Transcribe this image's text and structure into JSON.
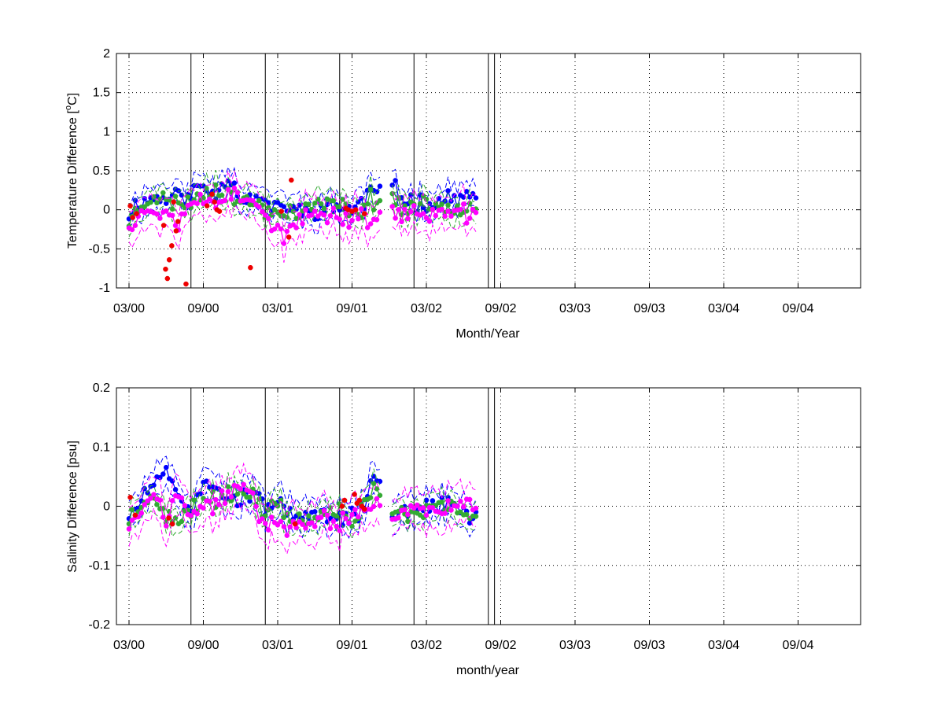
{
  "figure": {
    "background": "#ffffff",
    "series_colors": {
      "blue": "#0000ff",
      "green": "#33aa33",
      "magenta": "#ff00ff",
      "red": "#ee0000"
    }
  },
  "chart_data": [
    {
      "type": "line",
      "title": "",
      "xlabel": "Month/Year",
      "ylabel_main": "Temperature Difference [",
      "ylabel_sup": "o",
      "ylabel_end": "C]",
      "x_tick_labels": [
        "03/00",
        "09/00",
        "03/01",
        "09/01",
        "03/02",
        "09/02",
        "03/03",
        "09/03",
        "03/04",
        "09/04"
      ],
      "y_tick_labels": [
        "2",
        "1.5",
        "1",
        "0.5",
        "0",
        "-0.5",
        "-1"
      ],
      "y_ticks": [
        2,
        1.5,
        1,
        0.5,
        0,
        -0.5,
        -1
      ],
      "ylim": [
        -1,
        2
      ],
      "grid": true,
      "vertical_lines_months": [
        5,
        11,
        17,
        23,
        29,
        29.5
      ],
      "series": [
        {
          "color": "blue",
          "marker": true,
          "envelope": 0.15,
          "seed": 11,
          "gap": [
            20.3,
            21.2
          ],
          "anchors": [
            [
              0,
              -0.05
            ],
            [
              0.5,
              0.05
            ],
            [
              1,
              0.1
            ],
            [
              2,
              0.15
            ],
            [
              3,
              0.15
            ],
            [
              4,
              0.2
            ],
            [
              5,
              0.15
            ],
            [
              5.5,
              0.3
            ],
            [
              6,
              0.3
            ],
            [
              7,
              0.2
            ],
            [
              8,
              0.45
            ],
            [
              9,
              0.15
            ],
            [
              10,
              0.15
            ],
            [
              11,
              0.1
            ],
            [
              12,
              0.0
            ],
            [
              13,
              0.05
            ],
            [
              14,
              -0.05
            ],
            [
              15,
              0.0
            ],
            [
              16,
              0.0
            ],
            [
              17,
              0.05
            ],
            [
              18,
              0.0
            ],
            [
              19,
              0.1
            ],
            [
              19.5,
              0.3
            ],
            [
              20,
              0.2
            ],
            [
              21.3,
              0.3
            ],
            [
              22,
              0.15
            ],
            [
              23,
              0.1
            ],
            [
              24,
              0.1
            ],
            [
              25,
              0.1
            ],
            [
              26,
              0.15
            ],
            [
              27,
              0.15
            ],
            [
              28,
              0.15
            ]
          ]
        },
        {
          "color": "green",
          "marker": true,
          "envelope": 0.15,
          "seed": 23,
          "gap": [
            20.3,
            21.2
          ],
          "anchors": [
            [
              0,
              -0.15
            ],
            [
              1,
              0.05
            ],
            [
              2,
              0.2
            ],
            [
              3,
              0.1
            ],
            [
              4,
              0.1
            ],
            [
              5,
              0.1
            ],
            [
              6,
              0.2
            ],
            [
              7,
              0.3
            ],
            [
              8,
              0.2
            ],
            [
              9,
              0.1
            ],
            [
              10,
              0.1
            ],
            [
              11,
              0.0
            ],
            [
              12,
              -0.05
            ],
            [
              13,
              0.0
            ],
            [
              14,
              -0.05
            ],
            [
              15,
              0.1
            ],
            [
              16,
              0.05
            ],
            [
              17,
              0.05
            ],
            [
              18,
              0.0
            ],
            [
              19,
              0.0
            ],
            [
              19.5,
              0.15
            ],
            [
              20,
              0.1
            ],
            [
              21.3,
              0.2
            ],
            [
              22,
              0.0
            ],
            [
              23,
              0.05
            ],
            [
              24,
              0.05
            ],
            [
              25,
              0.05
            ],
            [
              26,
              0.05
            ],
            [
              27,
              0.05
            ],
            [
              28,
              0.05
            ]
          ]
        },
        {
          "color": "magenta",
          "marker": true,
          "envelope": 0.2,
          "seed": 37,
          "gap": [
            20.3,
            21.2
          ],
          "anchors": [
            [
              0,
              -0.2
            ],
            [
              1,
              0.0
            ],
            [
              2,
              -0.05
            ],
            [
              3,
              0.0
            ],
            [
              4,
              -0.2
            ],
            [
              5,
              0.15
            ],
            [
              6,
              0.1
            ],
            [
              7,
              0.1
            ],
            [
              8,
              0.25
            ],
            [
              9,
              0.1
            ],
            [
              10,
              0.2
            ],
            [
              11,
              -0.1
            ],
            [
              12,
              -0.2
            ],
            [
              12.5,
              -0.45
            ],
            [
              13,
              -0.25
            ],
            [
              14,
              -0.15
            ],
            [
              15,
              -0.05
            ],
            [
              16,
              -0.05
            ],
            [
              17,
              -0.1
            ],
            [
              18,
              -0.1
            ],
            [
              19,
              -0.05
            ],
            [
              19.5,
              -0.2
            ],
            [
              20,
              -0.05
            ],
            [
              21.3,
              -0.05
            ],
            [
              22,
              -0.05
            ],
            [
              23,
              -0.05
            ],
            [
              24,
              -0.05
            ],
            [
              25,
              -0.05
            ],
            [
              26,
              -0.05
            ],
            [
              27,
              -0.05
            ],
            [
              28,
              -0.1
            ]
          ]
        },
        {
          "color": "red",
          "marker": true,
          "scatter": true,
          "points": [
            [
              0.1,
              0.05
            ],
            [
              0.3,
              -0.1
            ],
            [
              0.6,
              -0.05
            ],
            [
              2.8,
              -0.2
            ],
            [
              2.95,
              -0.76
            ],
            [
              3.1,
              -0.88
            ],
            [
              3.25,
              -0.64
            ],
            [
              3.45,
              -0.46
            ],
            [
              3.6,
              0.1
            ],
            [
              3.8,
              -0.27
            ],
            [
              3.95,
              -0.15
            ],
            [
              4.6,
              -0.95
            ],
            [
              6.3,
              0.05
            ],
            [
              6.7,
              0.2
            ],
            [
              6.9,
              0.1
            ],
            [
              7.1,
              0.0
            ],
            [
              7.3,
              -0.02
            ],
            [
              9.8,
              -0.74
            ],
            [
              12.3,
              -0.02
            ],
            [
              12.9,
              -0.35
            ],
            [
              13.1,
              0.38
            ],
            [
              17.5,
              0.02
            ],
            [
              17.7,
              0.0
            ],
            [
              18.0,
              -0.02
            ],
            [
              18.3,
              0.0
            ],
            [
              19.0,
              -0.05
            ]
          ]
        }
      ]
    },
    {
      "type": "line",
      "title": "",
      "xlabel": "month/year",
      "ylabel": "Salinity Difference [psu]",
      "x_tick_labels": [
        "03/00",
        "09/00",
        "03/01",
        "09/01",
        "03/02",
        "09/02",
        "03/03",
        "09/03",
        "03/04",
        "09/04"
      ],
      "y_tick_labels": [
        "0.2",
        "0.1",
        "0",
        "-0.1",
        "-0.2"
      ],
      "y_ticks": [
        0.2,
        0.1,
        0,
        -0.1,
        -0.2
      ],
      "ylim": [
        -0.2,
        0.2
      ],
      "grid": true,
      "vertical_lines_months": [
        5,
        11,
        17,
        23,
        29,
        29.5
      ],
      "series": [
        {
          "color": "blue",
          "marker": true,
          "envelope": 0.025,
          "seed": 51,
          "gap": [
            20.3,
            21.2
          ],
          "anchors": [
            [
              0,
              -0.02
            ],
            [
              1,
              0.01
            ],
            [
              2,
              0.04
            ],
            [
              3,
              0.05
            ],
            [
              4,
              0.02
            ],
            [
              5,
              -0.01
            ],
            [
              6,
              0.04
            ],
            [
              7,
              0.03
            ],
            [
              8,
              0.02
            ],
            [
              9,
              0.01
            ],
            [
              10,
              0.02
            ],
            [
              11,
              0.0
            ],
            [
              12,
              0.02
            ],
            [
              13,
              -0.02
            ],
            [
              14,
              -0.02
            ],
            [
              15,
              -0.02
            ],
            [
              16,
              -0.02
            ],
            [
              17,
              -0.02
            ],
            [
              18,
              -0.02
            ],
            [
              19,
              0.0
            ],
            [
              19.5,
              0.04
            ],
            [
              20,
              0.05
            ],
            [
              21.3,
              -0.02
            ],
            [
              22,
              -0.01
            ],
            [
              23,
              -0.01
            ],
            [
              24,
              0.0
            ],
            [
              25,
              0.0
            ],
            [
              26,
              0.01
            ],
            [
              27,
              -0.01
            ],
            [
              28,
              -0.02
            ]
          ]
        },
        {
          "color": "green",
          "marker": true,
          "envelope": 0.02,
          "seed": 63,
          "gap": [
            20.3,
            21.2
          ],
          "anchors": [
            [
              0,
              -0.03
            ],
            [
              1,
              0.0
            ],
            [
              2,
              0.02
            ],
            [
              3,
              -0.02
            ],
            [
              4,
              -0.02
            ],
            [
              5,
              -0.01
            ],
            [
              6,
              0.02
            ],
            [
              7,
              0.01
            ],
            [
              8,
              0.02
            ],
            [
              9,
              0.03
            ],
            [
              10,
              0.02
            ],
            [
              11,
              -0.01
            ],
            [
              12,
              0.0
            ],
            [
              13,
              -0.02
            ],
            [
              14,
              -0.02
            ],
            [
              15,
              -0.02
            ],
            [
              16,
              -0.01
            ],
            [
              17,
              -0.01
            ],
            [
              18,
              -0.03
            ],
            [
              19,
              0.0
            ],
            [
              19.5,
              0.02
            ],
            [
              20,
              0.03
            ],
            [
              21.3,
              0.0
            ],
            [
              22,
              -0.01
            ],
            [
              23,
              -0.02
            ],
            [
              24,
              0.0
            ],
            [
              25,
              0.0
            ],
            [
              26,
              0.0
            ],
            [
              27,
              -0.01
            ],
            [
              28,
              -0.01
            ]
          ]
        },
        {
          "color": "magenta",
          "marker": true,
          "envelope": 0.03,
          "seed": 77,
          "gap": [
            20.3,
            21.2
          ],
          "anchors": [
            [
              0,
              -0.03
            ],
            [
              1,
              -0.01
            ],
            [
              2,
              0.02
            ],
            [
              3,
              -0.02
            ],
            [
              4,
              0.02
            ],
            [
              5,
              -0.02
            ],
            [
              6,
              0.0
            ],
            [
              7,
              0.0
            ],
            [
              8,
              0.02
            ],
            [
              9,
              0.03
            ],
            [
              10,
              0.02
            ],
            [
              11,
              -0.04
            ],
            [
              12,
              -0.03
            ],
            [
              13,
              -0.04
            ],
            [
              14,
              -0.03
            ],
            [
              15,
              -0.03
            ],
            [
              16,
              -0.02
            ],
            [
              17,
              -0.03
            ],
            [
              18,
              -0.02
            ],
            [
              19,
              -0.01
            ],
            [
              19.5,
              0.0
            ],
            [
              20,
              0.01
            ],
            [
              21.3,
              -0.02
            ],
            [
              22,
              -0.01
            ],
            [
              23,
              0.0
            ],
            [
              24,
              -0.01
            ],
            [
              25,
              0.0
            ],
            [
              26,
              0.0
            ],
            [
              27,
              0.0
            ],
            [
              28,
              -0.01
            ]
          ]
        },
        {
          "color": "red",
          "marker": true,
          "scatter": true,
          "points": [
            [
              0.1,
              0.015
            ],
            [
              0.5,
              -0.015
            ],
            [
              3.2,
              -0.02
            ],
            [
              3.5,
              -0.03
            ],
            [
              17.2,
              0.0
            ],
            [
              17.4,
              0.01
            ],
            [
              18.2,
              0.02
            ],
            [
              18.4,
              0.005
            ],
            [
              18.6,
              0.01
            ],
            [
              18.8,
              0.0
            ],
            [
              19.0,
              -0.005
            ],
            [
              13.4,
              -0.03
            ]
          ]
        }
      ]
    }
  ]
}
